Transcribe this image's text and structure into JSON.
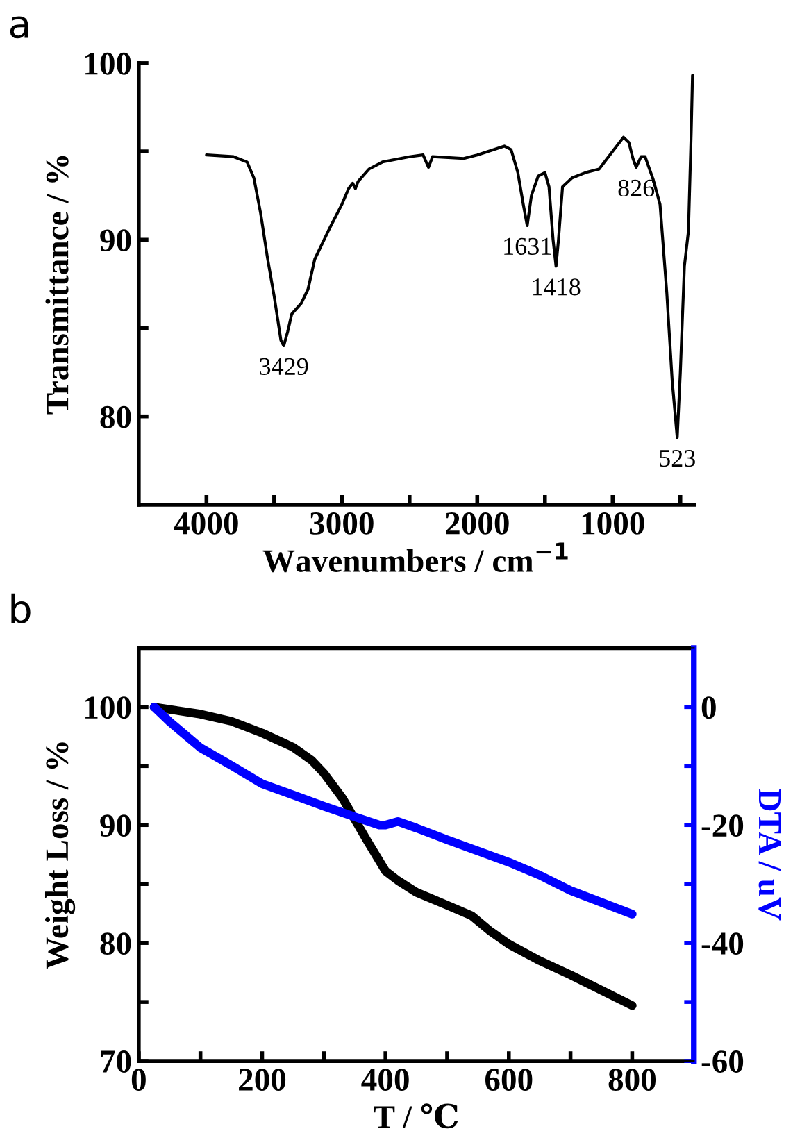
{
  "chart_data": [
    {
      "type": "line",
      "title": "a",
      "xlabel": "Wavenumbers / cm$^{−1}$",
      "ylabel": "Transmittance / %",
      "xlim": [
        4500,
        400
      ],
      "ylim": [
        75,
        100
      ],
      "xticks": [
        4000,
        {
          "value": 3500,
          "label": null
        },
        3000,
        {
          "value": 2500,
          "label": null
        },
        2000,
        {
          "value": 1500,
          "label": null
        },
        1000,
        {
          "value": 500,
          "label": null
        }
      ],
      "yticks": [
        80,
        {
          "value": 85,
          "label": null
        },
        90,
        {
          "value": 95,
          "label": null
        },
        100
      ],
      "grid": false,
      "legend": false,
      "series": [
        {
          "color": "#000000",
          "x": [
            4000,
            3800,
            3700,
            3650,
            3600,
            3550,
            3500,
            3450,
            3429,
            3400,
            3370,
            3300,
            3250,
            3200,
            3100,
            3000,
            2950,
            2920,
            2900,
            2880,
            2800,
            2700,
            2500,
            2400,
            2360,
            2330,
            2100,
            2000,
            1800,
            1750,
            1700,
            1660,
            1631,
            1600,
            1550,
            1500,
            1470,
            1440,
            1418,
            1400,
            1370,
            1300,
            1200,
            1100,
            1000,
            920,
            880,
            850,
            826,
            790,
            760,
            700,
            650,
            600,
            560,
            523,
            500,
            470,
            440,
            420,
            410
          ],
          "values": [
            94.8,
            94.7,
            94.4,
            93.5,
            91.5,
            89,
            86.8,
            84.3,
            84.0,
            84.8,
            85.8,
            86.4,
            87.2,
            88.9,
            90.5,
            92.0,
            92.9,
            93.2,
            92.9,
            93.3,
            94.0,
            94.4,
            94.7,
            94.8,
            94.1,
            94.7,
            94.6,
            94.8,
            95.3,
            95.1,
            93.8,
            92.0,
            90.8,
            92.5,
            93.6,
            93.8,
            93.0,
            90.0,
            88.5,
            90.0,
            93.0,
            93.5,
            93.8,
            94.0,
            95.0,
            95.8,
            95.5,
            94.6,
            94.1,
            94.7,
            94.7,
            93.4,
            92.0,
            87.0,
            82.0,
            78.8,
            82.5,
            88.5,
            90.5,
            96,
            99.3
          ]
        }
      ],
      "annotations": [
        {
          "text": "3429",
          "x": 3429,
          "y": 84.0
        },
        {
          "text": "1631",
          "x": 1631,
          "y": 90.8
        },
        {
          "text": "1418",
          "x": 1418,
          "y": 88.5
        },
        {
          "text": "826",
          "x": 826,
          "y": 94.1
        },
        {
          "text": "523",
          "x": 523,
          "y": 78.8
        }
      ]
    },
    {
      "type": "line",
      "title": "b",
      "xlabel": "T / ℃",
      "ylabel": "Weight Loss / %",
      "y2label": "DTA / uV",
      "xlim": [
        0,
        900
      ],
      "ylim": [
        70,
        105
      ],
      "y2lim": [
        -60,
        10
      ],
      "xticks": [
        0,
        {
          "value": 100,
          "label": null
        },
        200,
        {
          "value": 300,
          "label": null
        },
        400,
        {
          "value": 500,
          "label": null
        },
        600,
        {
          "value": 700,
          "label": null
        },
        800
      ],
      "yticks": [
        70,
        {
          "value": 75,
          "label": null
        },
        80,
        {
          "value": 85,
          "label": null
        },
        90,
        {
          "value": 95,
          "label": null
        },
        100
      ],
      "y2ticks": [
        {
          "value": -60,
          "label": "-60"
        },
        {
          "value": -50,
          "label": null
        },
        {
          "value": -40,
          "label": "-40"
        },
        {
          "value": -30,
          "label": null
        },
        {
          "value": -20,
          "label": "-20"
        },
        {
          "value": -10,
          "label": null
        },
        0
      ],
      "grid": false,
      "legend": false,
      "series": [
        {
          "color": "#000000",
          "x": [
            25,
            100,
            150,
            200,
            250,
            280,
            300,
            330,
            350,
            370,
            400,
            420,
            450,
            500,
            540,
            570,
            600,
            650,
            700,
            750,
            800
          ],
          "values": [
            100,
            99.4,
            98.8,
            97.8,
            96.6,
            95.5,
            94.4,
            92.3,
            90.5,
            88.7,
            86.1,
            85.3,
            84.3,
            83.2,
            82.3,
            81.0,
            79.9,
            78.5,
            77.3,
            76.0,
            74.7
          ]
        },
        {
          "color": "#0000ff",
          "axis": "y2",
          "x": [
            25,
            50,
            100,
            150,
            200,
            250,
            300,
            350,
            390,
            400,
            420,
            450,
            500,
            600,
            650,
            700,
            750,
            800
          ],
          "values": [
            0,
            -2.5,
            -6.9,
            -9.9,
            -13.0,
            -14.9,
            -16.8,
            -18.6,
            -20.0,
            -20.0,
            -19.4,
            -20.5,
            -22.5,
            -26.3,
            -28.5,
            -31.1,
            -33.1,
            -35.1
          ]
        }
      ]
    }
  ]
}
